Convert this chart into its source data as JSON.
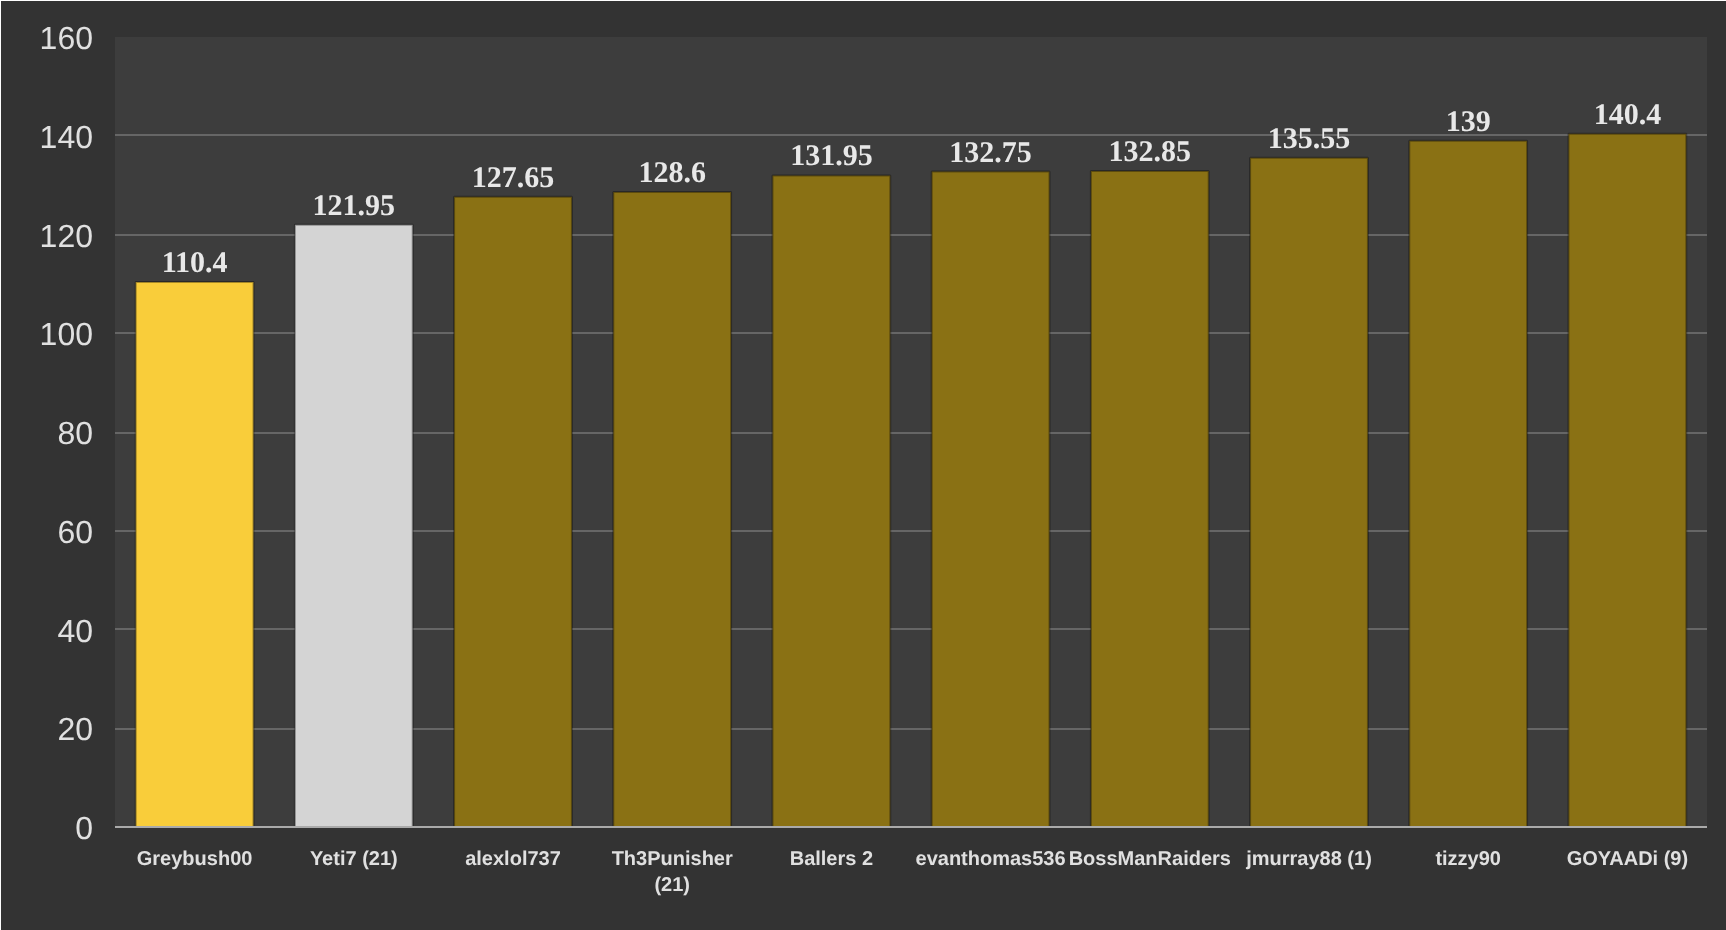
{
  "chart_data": {
    "type": "bar",
    "categories": [
      "Greybush00",
      "Yeti7 (21)",
      "alexlol737",
      "Th3Punisher (21)",
      "Ballers 2",
      "evanthomas536",
      "BossManRaiders",
      "jmurray88 (1)",
      "tizzy90",
      "GOYAADi (9)"
    ],
    "values": [
      110.4,
      121.95,
      127.65,
      128.6,
      131.95,
      132.75,
      132.85,
      135.55,
      139,
      140.4
    ],
    "colors": [
      "#f9cd3a",
      "#d4d4d4",
      "#8a7114",
      "#8a7114",
      "#8a7114",
      "#8a7114",
      "#8a7114",
      "#8a7114",
      "#8a7114",
      "#8a7114"
    ],
    "ylim": [
      0,
      160
    ],
    "yticks": [
      0,
      20,
      40,
      60,
      80,
      100,
      120,
      140,
      160
    ],
    "grid": "y",
    "data_labels": true
  }
}
